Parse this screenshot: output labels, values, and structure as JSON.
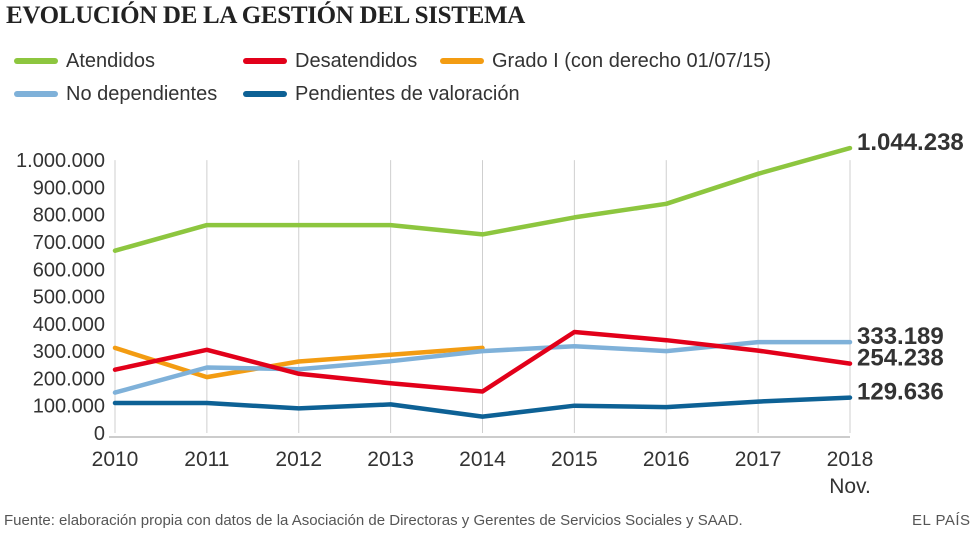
{
  "chart_data": {
    "type": "line",
    "title": "EVOLUCIÓN DE LA GESTIÓN DEL SISTEMA",
    "xlabel": "",
    "ylabel": "",
    "categories": [
      "2010",
      "2011",
      "2012",
      "2013",
      "2014",
      "2015",
      "2016",
      "2017",
      "2018"
    ],
    "x_sublabel": "Nov.",
    "ylim": [
      0,
      1050000
    ],
    "yticks": [
      {
        "value": 0,
        "label": "0"
      },
      {
        "value": 100000,
        "label": "100.000"
      },
      {
        "value": 200000,
        "label": "200.000"
      },
      {
        "value": 300000,
        "label": "300.000"
      },
      {
        "value": 400000,
        "label": "400.000"
      },
      {
        "value": 500000,
        "label": "500.000"
      },
      {
        "value": 600000,
        "label": "600.000"
      },
      {
        "value": 700000,
        "label": "700.000"
      },
      {
        "value": 800000,
        "label": "800.000"
      },
      {
        "value": 900000,
        "label": "900.000"
      },
      {
        "value": 1000000,
        "label": "1.000.000"
      }
    ],
    "grid": "vertical",
    "series": [
      {
        "name": "Atendidos",
        "color": "#8dc63f",
        "values": [
          668000,
          762000,
          762000,
          762000,
          728000,
          790000,
          840000,
          950000,
          1044238
        ],
        "end_label": "1.044.238"
      },
      {
        "name": "Desatendidos",
        "color": "#e2001a",
        "values": [
          232000,
          305000,
          217000,
          182000,
          152000,
          370000,
          340000,
          302000,
          254238
        ],
        "end_label": "254.238"
      },
      {
        "name": "Grado I (con derecho 01/07/15)",
        "color": "#f39c12",
        "values": [
          312000,
          205000,
          262000,
          287000,
          312000,
          null,
          null,
          null,
          null
        ],
        "end_label": ""
      },
      {
        "name": "No dependientes",
        "color": "#7fb1d9",
        "values": [
          148000,
          240000,
          234000,
          263000,
          300000,
          318000,
          300000,
          333000,
          333189
        ],
        "end_label": "333.189"
      },
      {
        "name": "Pendientes de valoración",
        "color": "#0d6195",
        "values": [
          110000,
          110000,
          90000,
          105000,
          60000,
          100000,
          95000,
          115000,
          129636
        ],
        "end_label": "129.636"
      }
    ]
  },
  "footer": {
    "source": "Fuente: elaboración propia con datos de la Asociación de Directoras y Gerentes de Servicios Sociales y SAAD.",
    "brand": "EL PAÍS"
  }
}
